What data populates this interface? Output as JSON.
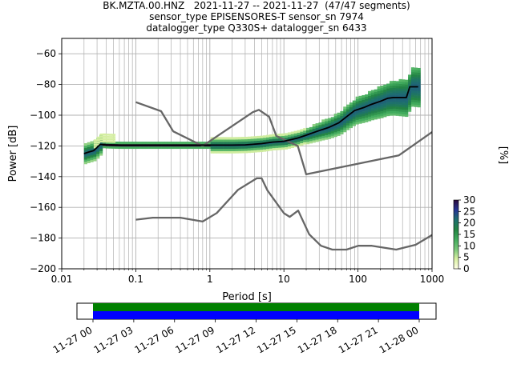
{
  "title_lines": [
    "BK.MZTA.00.HNZ   2021-11-27 -- 2021-11-27  (47/47 segments)",
    "sensor_type EPISENSORES-T sensor_sn 7974",
    "datalogger_type Q330S+ datalogger_sn 6433"
  ],
  "chart_data": [
    {
      "type": "heatmap",
      "title": "BK.MZTA.00.HNZ   2021-11-27 -- 2021-11-27  (47/47 segments)",
      "xlabel": "Period [s]",
      "ylabel": "Power [dB]",
      "x_scale": "log",
      "xlim": [
        0.01,
        1000
      ],
      "ylim": [
        -200,
        -50
      ],
      "grid": true,
      "x_ticks": [
        {
          "value": 0.01,
          "label": "0.01"
        },
        {
          "value": 0.1,
          "label": "0.1"
        },
        {
          "value": 1,
          "label": "1"
        },
        {
          "value": 10,
          "label": "10"
        },
        {
          "value": 100,
          "label": "100"
        },
        {
          "value": 1000,
          "label": "1000"
        }
      ],
      "y_ticks": [
        {
          "value": -60,
          "label": "−60"
        },
        {
          "value": -80,
          "label": "−80"
        },
        {
          "value": -100,
          "label": "−100"
        },
        {
          "value": -120,
          "label": "−120"
        },
        {
          "value": -140,
          "label": "−140"
        },
        {
          "value": -160,
          "label": "−160"
        },
        {
          "value": -180,
          "label": "−180"
        },
        {
          "value": -200,
          "label": "−200"
        }
      ],
      "reference_curves": [
        {
          "points": [
            [
              0.1,
              -91.5
            ],
            [
              0.22,
              -97.4
            ],
            [
              0.32,
              -110.5
            ],
            [
              0.8,
              -120
            ],
            [
              3.8,
              -98
            ],
            [
              4.6,
              -96.5
            ],
            [
              6.3,
              -101
            ],
            [
              7.9,
              -113.5
            ],
            [
              15.4,
              -120
            ],
            [
              20,
              -138.5
            ],
            [
              354.8,
              -126.2
            ],
            [
              1000,
              -111
            ]
          ]
        },
        {
          "points": [
            [
              0.1,
              -168
            ],
            [
              0.17,
              -166.7
            ],
            [
              0.4,
              -166.7
            ],
            [
              0.8,
              -169.2
            ],
            [
              1.24,
              -163.7
            ],
            [
              2.4,
              -148.6
            ],
            [
              4.3,
              -141.1
            ],
            [
              5,
              -141.1
            ],
            [
              6,
              -149
            ],
            [
              10,
              -163.8
            ],
            [
              12,
              -166.2
            ],
            [
              15.6,
              -162.1
            ],
            [
              21.9,
              -177.5
            ],
            [
              31.6,
              -185
            ],
            [
              45,
              -187.5
            ],
            [
              70,
              -187.5
            ],
            [
              101,
              -185
            ],
            [
              154,
              -185
            ],
            [
              328,
              -187.5
            ],
            [
              600,
              -184.4
            ],
            [
              1000,
              -178
            ]
          ]
        }
      ],
      "mean_curve": {
        "points": [
          [
            0.02,
            -125
          ],
          [
            0.023,
            -124
          ],
          [
            0.027,
            -123
          ],
          [
            0.03,
            -121
          ],
          [
            0.033,
            -119
          ],
          [
            0.04,
            -119.3
          ],
          [
            0.06,
            -119.5
          ],
          [
            0.1,
            -119.5
          ],
          [
            0.5,
            -119.5
          ],
          [
            1,
            -119.5
          ],
          [
            2,
            -119.5
          ],
          [
            3,
            -119.3
          ],
          [
            5,
            -118.5
          ],
          [
            7,
            -117.5
          ],
          [
            10,
            -117
          ],
          [
            15,
            -115
          ],
          [
            20,
            -113
          ],
          [
            30,
            -110
          ],
          [
            40,
            -108
          ],
          [
            55,
            -105
          ],
          [
            70,
            -101
          ],
          [
            90,
            -97
          ],
          [
            120,
            -95
          ],
          [
            150,
            -93
          ],
          [
            200,
            -91
          ],
          [
            250,
            -89
          ],
          [
            300,
            -88.5
          ],
          [
            450,
            -88.5
          ],
          [
            500,
            -81.5
          ],
          [
            650,
            -81.5
          ]
        ]
      },
      "colorbar": {
        "label": "[%]",
        "range": [
          0,
          30
        ],
        "ticks": [
          {
            "value": 0,
            "label": "0"
          },
          {
            "value": 5,
            "label": "5"
          },
          {
            "value": 10,
            "label": "10"
          },
          {
            "value": 15,
            "label": "15"
          },
          {
            "value": 20,
            "label": "20"
          },
          {
            "value": 25,
            "label": "25"
          },
          {
            "value": 30,
            "label": "30"
          }
        ],
        "colors": [
          "#ffffe5",
          "#d9f0a3",
          "#78c679",
          "#41ab5d",
          "#238443",
          "#1d6f6f",
          "#253494",
          "#2b0a3d"
        ]
      }
    },
    {
      "type": "timeline",
      "x_start": "11-27 00",
      "x_end": "11-28 00",
      "x_ticks": [
        "11-27 00",
        "11-27 03",
        "11-27 06",
        "11-27 09",
        "11-27 12",
        "11-27 15",
        "11-27 18",
        "11-27 21",
        "11-28 00"
      ],
      "bars": [
        {
          "color": "#008000",
          "start_hour": 0,
          "end_hour": 24
        },
        {
          "color": "#0000ff",
          "start_hour": 0,
          "end_hour": 24
        }
      ]
    }
  ]
}
